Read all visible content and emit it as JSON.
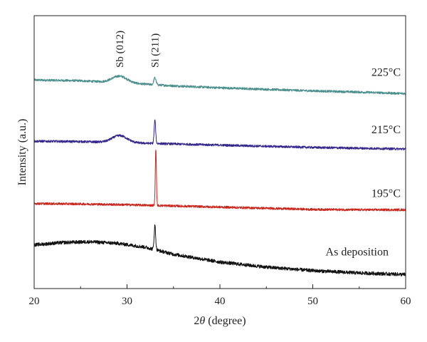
{
  "chart_data": {
    "type": "line",
    "xlabel_italic": "θ",
    "xlabel_prefix": "2",
    "xlabel_suffix": " (degree)",
    "ylabel": "Intensity (a.u.)",
    "xlim": [
      20,
      60
    ],
    "x_ticks": [
      20,
      30,
      40,
      50,
      60
    ],
    "y_ticks_shown": false,
    "grid": false,
    "legend": "none",
    "series": [
      {
        "name": "225°C",
        "color": "#4a8f8c",
        "baseline": [
          [
            20,
            5.35
          ],
          [
            25,
            5.33
          ],
          [
            30,
            5.27
          ],
          [
            35,
            5.2
          ],
          [
            40,
            5.15
          ],
          [
            45,
            5.11
          ],
          [
            50,
            5.07
          ],
          [
            55,
            5.04
          ],
          [
            60,
            5.0
          ]
        ],
        "peaks": [
          {
            "x": 29.2,
            "height": 0.17,
            "width": 0.8
          },
          {
            "x": 33.0,
            "height": 0.18,
            "width": 0.12
          }
        ],
        "noise": 0.03
      },
      {
        "name": "215°C",
        "color": "#33278a",
        "baseline": [
          [
            20,
            3.78
          ],
          [
            25,
            3.77
          ],
          [
            30,
            3.74
          ],
          [
            35,
            3.71
          ],
          [
            40,
            3.68
          ],
          [
            45,
            3.65
          ],
          [
            50,
            3.62
          ],
          [
            55,
            3.6
          ],
          [
            60,
            3.58
          ]
        ],
        "peaks": [
          {
            "x": 29.2,
            "height": 0.18,
            "width": 0.8
          },
          {
            "x": 33.0,
            "height": 0.6,
            "width": 0.08
          }
        ],
        "noise": 0.03
      },
      {
        "name": "195°C",
        "color": "#c8281e",
        "baseline": [
          [
            20,
            2.18
          ],
          [
            25,
            2.17
          ],
          [
            30,
            2.15
          ],
          [
            35,
            2.12
          ],
          [
            40,
            2.09
          ],
          [
            45,
            2.06
          ],
          [
            50,
            2.03
          ],
          [
            55,
            2.02
          ],
          [
            60,
            2.02
          ]
        ],
        "peaks": [
          {
            "x": 33.1,
            "height": 1.45,
            "width": 0.06
          }
        ],
        "noise": 0.03
      },
      {
        "name": "As deposition",
        "color": "#111111",
        "baseline": [
          [
            20,
            1.12
          ],
          [
            23,
            1.18
          ],
          [
            26,
            1.2
          ],
          [
            29,
            1.16
          ],
          [
            32,
            1.06
          ],
          [
            35,
            0.88
          ],
          [
            40,
            0.68
          ],
          [
            45,
            0.55
          ],
          [
            50,
            0.46
          ],
          [
            55,
            0.4
          ],
          [
            60,
            0.36
          ]
        ],
        "peaks": [
          {
            "x": 33.0,
            "height": 0.62,
            "width": 0.08
          }
        ],
        "noise": 0.045
      }
    ],
    "annotations": [
      {
        "text": "Sb (012)",
        "x": 29.2
      },
      {
        "text": "Si (211)",
        "x": 33.0
      }
    ],
    "ylim": [
      0,
      7
    ]
  }
}
